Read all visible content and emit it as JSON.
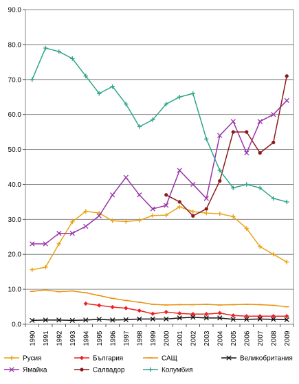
{
  "chart_data": {
    "type": "line",
    "title": "",
    "xlabel": "",
    "ylabel": "",
    "ylim": [
      0,
      90
    ],
    "y_ticks": [
      "0.0",
      "10.0",
      "20.0",
      "30.0",
      "40.0",
      "50.0",
      "60.0",
      "70.0",
      "80.0",
      "90.0"
    ],
    "grid": "horizontal",
    "legend_position": "bottom",
    "categories": [
      "1990",
      "1991",
      "1992",
      "1993",
      "1994",
      "1995",
      "1996",
      "1997",
      "1998",
      "1999",
      "2000",
      "2001",
      "2002",
      "2003",
      "2004",
      "2005",
      "2006",
      "2007",
      "2008",
      "2009"
    ],
    "series": [
      {
        "name": "Русия",
        "color": "#e8a317",
        "marker": "plus",
        "values": [
          15.6,
          16.3,
          23.0,
          29.3,
          32.3,
          31.8,
          29.6,
          29.4,
          29.7,
          31.1,
          31.2,
          33.6,
          32.2,
          31.8,
          31.6,
          30.8,
          27.4,
          22.2,
          20.0,
          17.8
        ]
      },
      {
        "name": "България",
        "color": "#ee2222",
        "marker": "diamond",
        "values": [
          null,
          null,
          null,
          null,
          5.9,
          5.4,
          4.9,
          4.6,
          3.9,
          3.0,
          3.5,
          3.1,
          2.9,
          2.9,
          3.2,
          2.5,
          2.3,
          2.3,
          2.3,
          2.3
        ]
      },
      {
        "name": "САЩ",
        "color": "#e8920a",
        "marker": "dash",
        "values": [
          9.4,
          9.8,
          9.3,
          9.5,
          9.0,
          8.2,
          7.4,
          6.8,
          6.3,
          5.7,
          5.5,
          5.6,
          5.6,
          5.7,
          5.5,
          5.6,
          5.7,
          5.6,
          5.4,
          5.0
        ]
      },
      {
        "name": "Великобритания",
        "color": "#111111",
        "marker": "x",
        "values": [
          1.1,
          1.2,
          1.2,
          1.1,
          1.2,
          1.4,
          1.2,
          1.3,
          1.5,
          1.5,
          1.5,
          1.8,
          2.0,
          1.8,
          1.8,
          1.4,
          1.4,
          1.5,
          1.4,
          1.3
        ]
      },
      {
        "name": "Ямайка",
        "color": "#9933aa",
        "marker": "x",
        "values": [
          23.0,
          23.0,
          26.0,
          26.0,
          28.0,
          31.0,
          37.0,
          42.0,
          37.0,
          33.0,
          34.0,
          44.0,
          40.0,
          36.0,
          54.0,
          58.0,
          49.0,
          58.0,
          60.0,
          64.0
        ]
      },
      {
        "name": "Салвадор",
        "color": "#8b1a1a",
        "marker": "circle",
        "values": [
          null,
          null,
          null,
          null,
          null,
          null,
          null,
          null,
          null,
          null,
          37.0,
          35.0,
          31.0,
          33.0,
          41.0,
          55.0,
          55.0,
          49.0,
          52.0,
          71.0
        ]
      },
      {
        "name": "Колумбия",
        "color": "#2fa58a",
        "marker": "plus",
        "values": [
          70.0,
          79.0,
          78.0,
          76.0,
          71.0,
          66.0,
          68.0,
          63.0,
          56.5,
          58.5,
          63.0,
          65.0,
          66.0,
          53.0,
          44.0,
          39.0,
          40.0,
          39.0,
          36.0,
          35.0
        ]
      }
    ]
  }
}
